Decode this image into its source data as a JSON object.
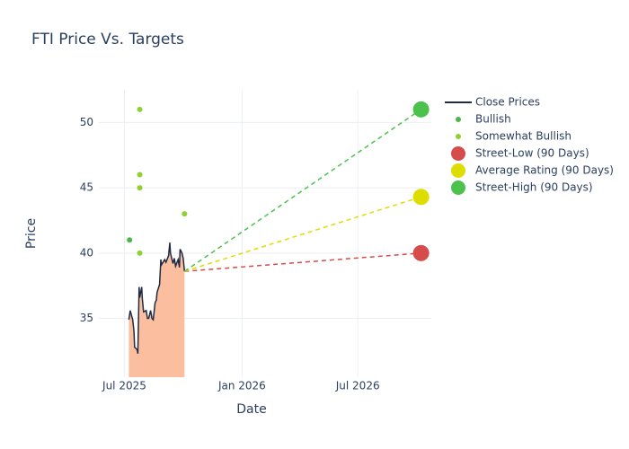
{
  "chart_data": {
    "type": "line",
    "title": "FTI Price Vs. Targets",
    "x_label": "Date",
    "y_label": "Price",
    "xlim": [
      "2025-05-22",
      "2026-10-24"
    ],
    "xticks": [
      {
        "value": "2025-07-01",
        "label": "Jul 2025"
      },
      {
        "value": "2026-01-01",
        "label": "Jan 2026"
      },
      {
        "value": "2026-07-01",
        "label": "Jul 2026"
      }
    ],
    "ylim": [
      30.5,
      52.5
    ],
    "yticks": [
      35,
      40,
      45,
      50
    ],
    "grid": true,
    "legend": "right",
    "series": [
      {
        "name": "Close Prices",
        "color": "#1f2a44",
        "mode": "lines",
        "fill": "#fbbf9f",
        "x": [
          "2025-07-08",
          "2025-07-10",
          "2025-07-14",
          "2025-07-16",
          "2025-07-17",
          "2025-07-21",
          "2025-07-22",
          "2025-07-24",
          "2025-07-25",
          "2025-07-28",
          "2025-07-29",
          "2025-07-31",
          "2025-08-04",
          "2025-08-06",
          "2025-08-08",
          "2025-08-11",
          "2025-08-13",
          "2025-08-15",
          "2025-08-18",
          "2025-08-20",
          "2025-08-21",
          "2025-08-25",
          "2025-08-27",
          "2025-08-28",
          "2025-09-02",
          "2025-09-04",
          "2025-09-08",
          "2025-09-10",
          "2025-09-11",
          "2025-09-15",
          "2025-09-17",
          "2025-09-19",
          "2025-09-23",
          "2025-09-25",
          "2025-09-26",
          "2025-09-29",
          "2025-10-01",
          "2025-10-03"
        ],
        "values": [
          34.9,
          35.6,
          34.9,
          34.0,
          32.8,
          32.6,
          32.3,
          37.4,
          36.6,
          37.4,
          36.5,
          35.5,
          35.6,
          35.0,
          35.0,
          35.6,
          35.0,
          34.9,
          36.2,
          36.4,
          37.0,
          37.6,
          39.5,
          39.1,
          39.5,
          39.3,
          39.8,
          40.8,
          40.0,
          39.2,
          39.6,
          39.0,
          39.5,
          38.9,
          40.3,
          40.0,
          39.6,
          38.6
        ]
      },
      {
        "name": "Bullish",
        "color": "#4cb84c",
        "mode": "markers",
        "x": [
          "2025-07-09"
        ],
        "values": [
          41
        ]
      },
      {
        "name": "Somewhat Bullish",
        "color": "#8fd12e",
        "mode": "markers",
        "x": [
          "2025-07-25",
          "2025-07-25",
          "2025-07-25",
          "2025-07-25",
          "2025-10-03"
        ],
        "values": [
          51,
          46,
          45,
          40,
          43
        ]
      },
      {
        "name": "Street-Low (90 Days)",
        "color": "#d64b4b",
        "mode": "markers",
        "x": [
          "2026-10-08"
        ],
        "values": [
          40
        ]
      },
      {
        "name": "Average Rating (90 Days)",
        "color": "#dddd00",
        "mode": "markers",
        "x": [
          "2026-10-08"
        ],
        "values": [
          44.3
        ]
      },
      {
        "name": "Street-High (90 Days)",
        "color": "#4cc24c",
        "mode": "markers",
        "x": [
          "2026-10-08"
        ],
        "values": [
          51
        ]
      }
    ]
  }
}
